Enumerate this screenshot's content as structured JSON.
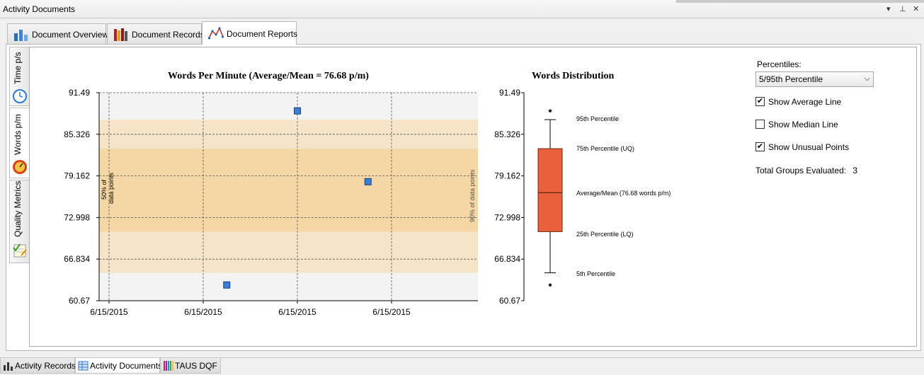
{
  "window": {
    "title": "Activity Documents",
    "controls": [
      "▾",
      "⊥",
      "✕"
    ]
  },
  "tabs": [
    {
      "label": "Document Overview",
      "icon": "bar-chart-icon"
    },
    {
      "label": "Document Records",
      "icon": "books-icon"
    },
    {
      "label": "Document Reports",
      "icon": "line-chart-icon",
      "active": true
    }
  ],
  "side_tabs": [
    {
      "label": "Time p/s",
      "icon": "clock-icon"
    },
    {
      "label": "Words p/m",
      "icon": "speedometer-icon",
      "active": true
    },
    {
      "label": "Quality Metrics",
      "icon": "checklist-icon"
    }
  ],
  "scatter_chart": {
    "title": "Words Per Minute (Average/Mean = 76.68 p/m)",
    "band_50_label_1": "50% of",
    "band_50_label_2": "data points",
    "band_90_label": "90% of data points"
  },
  "box_chart": {
    "title": "Words Distribution",
    "labels": {
      "p95": "95th Percentile",
      "uq": "75th Percentile (UQ)",
      "mean": "Average/Mean (76.68 words p/m)",
      "lq": "25th Percentile (LQ)",
      "p5": "5th Percentile"
    }
  },
  "controls": {
    "percentiles_label": "Percentiles:",
    "percentiles_value": "5/95th Percentile",
    "show_average_label": "Show Average Line",
    "show_average_checked": true,
    "show_median_label": "Show Median Line",
    "show_median_checked": false,
    "show_unusual_label": "Show Unusual Points",
    "show_unusual_checked": true,
    "groups_label": "Total Groups Evaluated:",
    "groups_value": "3"
  },
  "bottom_tabs": [
    {
      "label": "Activity Records",
      "icon": "bar-chart-icon"
    },
    {
      "label": "Activity Documents",
      "icon": "table-icon",
      "active": true
    },
    {
      "label": "TAUS DQF",
      "icon": "color-bars-icon"
    }
  ],
  "chart_data": [
    {
      "type": "scatter",
      "title": "Words Per Minute (Average/Mean = 76.68 p/m)",
      "ylim": [
        60.67,
        91.49
      ],
      "yticks": [
        "91.49",
        "85.326",
        "79.162",
        "72.998",
        "66.834",
        "60.67"
      ],
      "xticks": [
        "6/15/2015",
        "6/15/2015",
        "6/15/2015",
        "6/15/2015"
      ],
      "points": [
        {
          "x_index": 1.25,
          "y": 63.0
        },
        {
          "x_index": 2.0,
          "y": 88.8
        },
        {
          "x_index": 2.75,
          "y": 78.3
        }
      ],
      "bands": [
        {
          "name": "90% of data points",
          "from": 64.8,
          "to": 87.5
        },
        {
          "name": "50% of data points",
          "from": 70.9,
          "to": 83.2
        }
      ],
      "grid": true
    },
    {
      "type": "box",
      "title": "Words Distribution",
      "ylim": [
        60.67,
        91.49
      ],
      "yticks": [
        "91.49",
        "85.326",
        "79.162",
        "72.998",
        "66.834",
        "60.67"
      ],
      "p95": 87.5,
      "uq": 83.2,
      "mean": 76.68,
      "lq": 70.9,
      "p5": 64.8,
      "outliers": [
        88.8,
        63.0
      ],
      "grid": false
    }
  ]
}
